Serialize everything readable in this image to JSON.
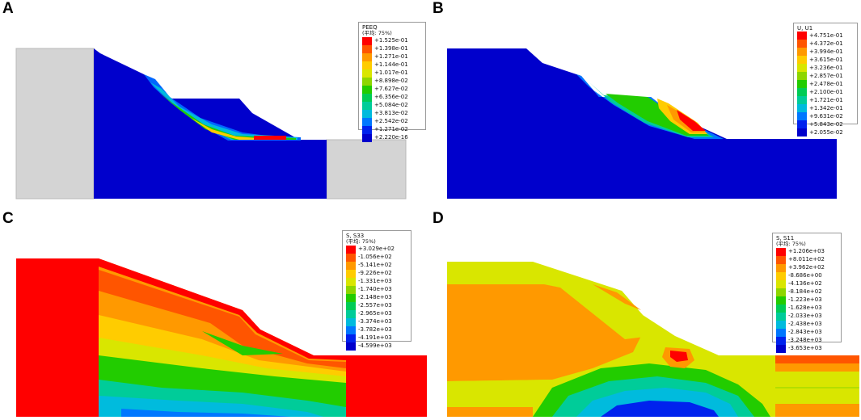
{
  "palette": [
    "#ff0000",
    "#ff5500",
    "#ff9900",
    "#ffcc00",
    "#d9e600",
    "#8ed600",
    "#22cc00",
    "#00cc55",
    "#00cc99",
    "#00bbdd",
    "#0077ff",
    "#0022ee",
    "#0000cc"
  ],
  "colors": {
    "support_gray": "#d4d4d4",
    "blue_min": "#0000cc",
    "red_max": "#ff0000",
    "background": "#ffffff"
  },
  "panels": [
    {
      "id": "A",
      "letter": "A",
      "legend": {
        "title": "PEEQ",
        "subtitle": "(平均: 75%)",
        "values": [
          "+1.525e-01",
          "+1.398e-01",
          "+1.271e-01",
          "+1.144e-01",
          "+1.017e-01",
          "+8.898e-02",
          "+7.627e-02",
          "+6.356e-02",
          "+5.084e-02",
          "+3.813e-02",
          "+2.542e-02",
          "+1.271e-02",
          "+2.220e-16"
        ]
      }
    },
    {
      "id": "B",
      "letter": "B",
      "legend": {
        "title": "U, U1",
        "subtitle": "",
        "values": [
          "+4.751e-01",
          "+4.372e-01",
          "+3.994e-01",
          "+3.615e-01",
          "+3.236e-01",
          "+2.857e-01",
          "+2.478e-01",
          "+2.100e-01",
          "+1.721e-01",
          "+1.342e-01",
          "+9.631e-02",
          "+5.843e-02",
          "+2.055e-02"
        ]
      }
    },
    {
      "id": "C",
      "letter": "C",
      "legend": {
        "title": "S, S33",
        "subtitle": "(平均: 75%)",
        "values": [
          "+3.029e+02",
          "-1.056e+02",
          "-5.141e+02",
          "-9.226e+02",
          "-1.331e+03",
          "-1.740e+03",
          "-2.148e+03",
          "-2.557e+03",
          "-2.965e+03",
          "-3.374e+03",
          "-3.782e+03",
          "-4.191e+03",
          "-4.599e+03"
        ]
      }
    },
    {
      "id": "D",
      "letter": "D",
      "legend": {
        "title": "S, S11",
        "subtitle": "(平均: 75%)",
        "values": [
          "+1.206e+03",
          "+8.011e+02",
          "+3.962e+02",
          "-8.686e+00",
          "-4.136e+02",
          "-8.184e+02",
          "-1.223e+03",
          "-1.628e+03",
          "-2.033e+03",
          "-2.438e+03",
          "-2.843e+03",
          "-3.248e+03",
          "-3.653e+03"
        ]
      }
    }
  ]
}
